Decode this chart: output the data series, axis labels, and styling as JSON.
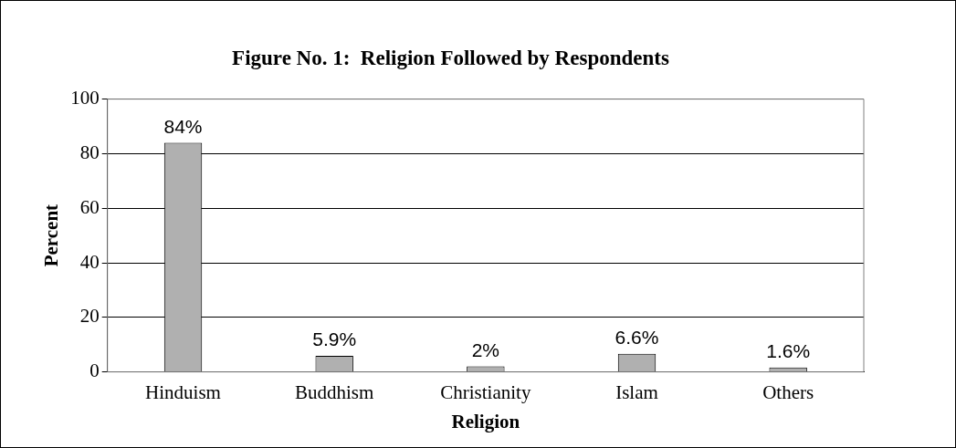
{
  "chart_data": {
    "type": "bar",
    "title": "Figure No. 1:  Religion Followed by Respondents",
    "xlabel": "Religion",
    "ylabel": "Percent",
    "categories": [
      "Hinduism",
      "Buddhism",
      "Christianity",
      "Islam",
      "Others"
    ],
    "values": [
      84,
      5.9,
      2,
      6.6,
      1.6
    ],
    "value_labels": [
      "84%",
      "5.9%",
      "2%",
      "6.6%",
      "1.6%"
    ],
    "color": "#b0b0b0",
    "ylim": [
      0,
      100
    ],
    "yticks": [
      0,
      20,
      40,
      60,
      80,
      100
    ],
    "grid": "y",
    "legend": false
  }
}
